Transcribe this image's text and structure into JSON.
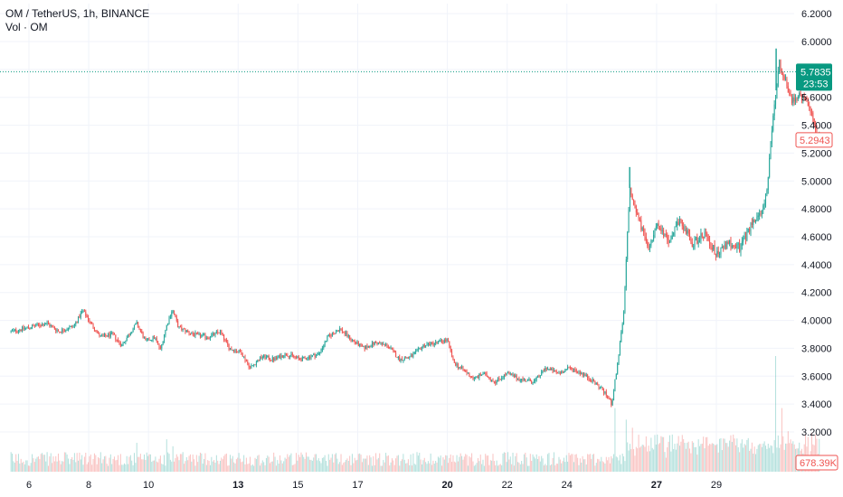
{
  "chart_data": {
    "type": "candlestick",
    "title": "OM / TetherUS, 1h, BINANCE",
    "volume_label": "Vol · OM",
    "colors": {
      "up": "#26a69a",
      "down": "#ef5350",
      "current_price_tag": "#089981",
      "volume_tag": "#ef5350",
      "grid": "#f0f3fa",
      "axis_text": "#131722"
    },
    "y_axis": {
      "range": [
        3.1,
        6.3
      ],
      "ticks": [
        "6.2000",
        "6.0000",
        "5.8000",
        "5.6000",
        "5.4000",
        "5.2000",
        "5.0000",
        "4.8000",
        "4.6000",
        "4.4000",
        "4.2000",
        "4.0000",
        "3.8000",
        "3.6000",
        "3.4000",
        "3.2000"
      ]
    },
    "x_axis": {
      "ticks": [
        "6",
        "8",
        "10",
        "13",
        "15",
        "17",
        "20",
        "22",
        "24",
        "27",
        "29"
      ],
      "bold_ticks": [
        "13",
        "20",
        "27"
      ],
      "tick_day_index": [
        0,
        2,
        4,
        7,
        9,
        11,
        14,
        16,
        18,
        21,
        23
      ],
      "day_range": [
        -0.6,
        26.5
      ]
    },
    "current_price": {
      "value": 5.7835,
      "label": "5.7835",
      "countdown": "23:53"
    },
    "last_price": {
      "value": 5.2943,
      "label": "5.2943"
    },
    "last_volume": "678.39K",
    "price_path": [
      {
        "day": -0.6,
        "price": 3.92
      },
      {
        "day": 0.0,
        "price": 3.95
      },
      {
        "day": 0.6,
        "price": 3.98
      },
      {
        "day": 1.0,
        "price": 3.92
      },
      {
        "day": 1.5,
        "price": 3.96
      },
      {
        "day": 1.8,
        "price": 4.07
      },
      {
        "day": 2.1,
        "price": 3.97
      },
      {
        "day": 2.4,
        "price": 3.88
      },
      {
        "day": 2.8,
        "price": 3.9
      },
      {
        "day": 3.1,
        "price": 3.82
      },
      {
        "day": 3.6,
        "price": 3.98
      },
      {
        "day": 3.9,
        "price": 3.85
      },
      {
        "day": 4.2,
        "price": 3.88
      },
      {
        "day": 4.4,
        "price": 3.79
      },
      {
        "day": 4.6,
        "price": 3.96
      },
      {
        "day": 4.8,
        "price": 4.08
      },
      {
        "day": 5.0,
        "price": 3.95
      },
      {
        "day": 5.5,
        "price": 3.9
      },
      {
        "day": 6.0,
        "price": 3.88
      },
      {
        "day": 6.4,
        "price": 3.92
      },
      {
        "day": 6.7,
        "price": 3.8
      },
      {
        "day": 7.1,
        "price": 3.77
      },
      {
        "day": 7.4,
        "price": 3.66
      },
      {
        "day": 7.8,
        "price": 3.74
      },
      {
        "day": 8.2,
        "price": 3.72
      },
      {
        "day": 8.6,
        "price": 3.76
      },
      {
        "day": 9.1,
        "price": 3.72
      },
      {
        "day": 9.7,
        "price": 3.76
      },
      {
        "day": 10.0,
        "price": 3.88
      },
      {
        "day": 10.4,
        "price": 3.94
      },
      {
        "day": 10.8,
        "price": 3.86
      },
      {
        "day": 11.2,
        "price": 3.8
      },
      {
        "day": 11.6,
        "price": 3.84
      },
      {
        "day": 12.0,
        "price": 3.82
      },
      {
        "day": 12.4,
        "price": 3.72
      },
      {
        "day": 12.8,
        "price": 3.74
      },
      {
        "day": 13.2,
        "price": 3.82
      },
      {
        "day": 13.6,
        "price": 3.84
      },
      {
        "day": 14.0,
        "price": 3.86
      },
      {
        "day": 14.2,
        "price": 3.7
      },
      {
        "day": 14.5,
        "price": 3.65
      },
      {
        "day": 14.9,
        "price": 3.58
      },
      {
        "day": 15.2,
        "price": 3.62
      },
      {
        "day": 15.6,
        "price": 3.56
      },
      {
        "day": 16.0,
        "price": 3.62
      },
      {
        "day": 16.4,
        "price": 3.58
      },
      {
        "day": 16.9,
        "price": 3.56
      },
      {
        "day": 17.3,
        "price": 3.66
      },
      {
        "day": 17.7,
        "price": 3.62
      },
      {
        "day": 18.1,
        "price": 3.66
      },
      {
        "day": 18.5,
        "price": 3.62
      },
      {
        "day": 18.9,
        "price": 3.56
      },
      {
        "day": 19.2,
        "price": 3.5
      },
      {
        "day": 19.5,
        "price": 3.4
      },
      {
        "day": 19.7,
        "price": 3.7
      },
      {
        "day": 19.9,
        "price": 4.05
      },
      {
        "day": 20.1,
        "price": 4.95
      },
      {
        "day": 20.3,
        "price": 4.8
      },
      {
        "day": 20.7,
        "price": 4.52
      },
      {
        "day": 21.0,
        "price": 4.68
      },
      {
        "day": 21.4,
        "price": 4.58
      },
      {
        "day": 21.8,
        "price": 4.72
      },
      {
        "day": 22.2,
        "price": 4.55
      },
      {
        "day": 22.6,
        "price": 4.62
      },
      {
        "day": 23.0,
        "price": 4.48
      },
      {
        "day": 23.4,
        "price": 4.55
      },
      {
        "day": 23.8,
        "price": 4.52
      },
      {
        "day": 24.2,
        "price": 4.7
      },
      {
        "day": 24.5,
        "price": 4.76
      },
      {
        "day": 24.7,
        "price": 4.95
      },
      {
        "day": 24.9,
        "price": 5.45
      },
      {
        "day": 25.1,
        "price": 5.85
      },
      {
        "day": 25.3,
        "price": 5.72
      },
      {
        "day": 25.5,
        "price": 5.58
      },
      {
        "day": 25.8,
        "price": 5.62
      },
      {
        "day": 26.1,
        "price": 5.52
      },
      {
        "day": 26.3,
        "price": 5.4
      },
      {
        "day": 26.45,
        "price": 5.29
      }
    ],
    "spike_highs": [
      {
        "day": 20.1,
        "high": 5.1
      },
      {
        "day": 25.0,
        "high": 5.95
      }
    ],
    "volume_spikes": [
      {
        "day": 19.6,
        "vol": 0.55
      },
      {
        "day": 20.0,
        "vol": 0.45
      },
      {
        "day": 20.2,
        "vol": 0.38
      },
      {
        "day": 25.0,
        "vol": 1.0
      },
      {
        "day": 25.2,
        "vol": 0.55
      },
      {
        "day": 25.4,
        "vol": 0.35
      },
      {
        "day": 21.2,
        "vol": 0.3
      },
      {
        "day": 22.4,
        "vol": 0.28
      },
      {
        "day": 4.6,
        "vol": 0.28
      },
      {
        "day": 4.8,
        "vol": 0.22
      },
      {
        "day": 3.6,
        "vol": 0.25
      }
    ]
  }
}
